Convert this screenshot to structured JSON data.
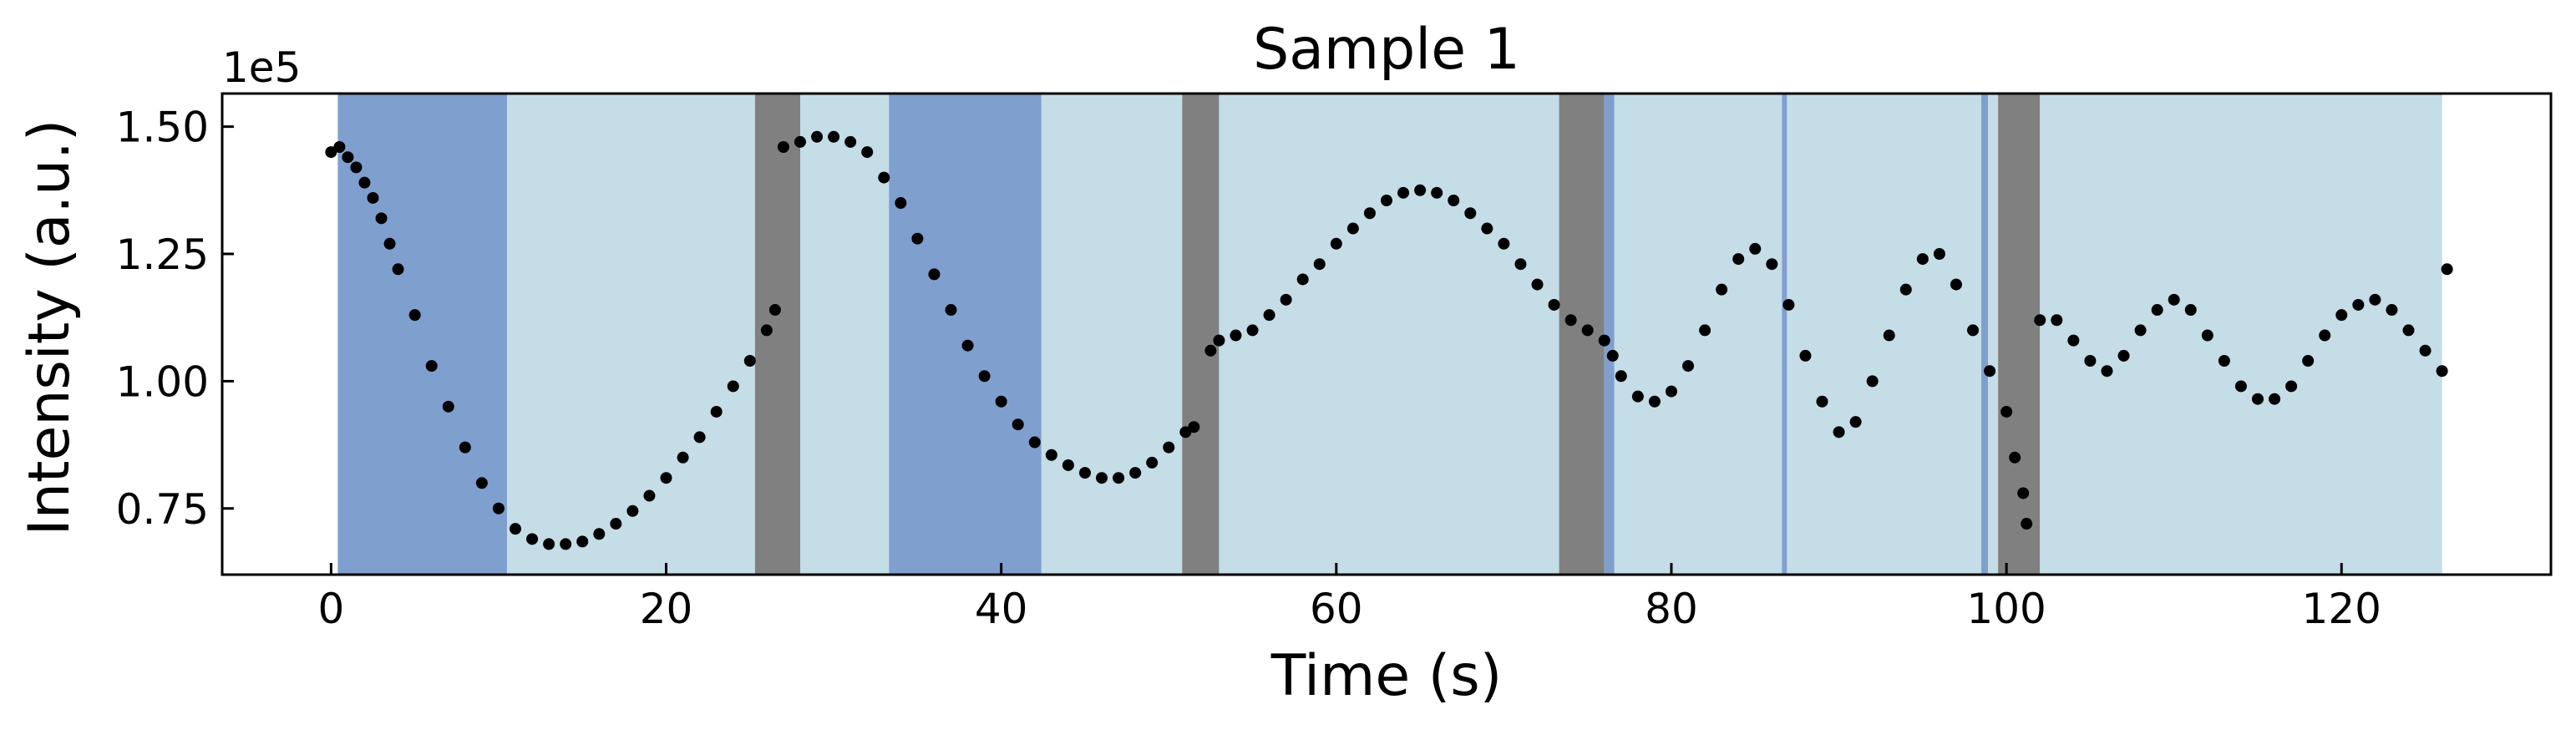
{
  "chart_data": {
    "type": "scatter",
    "title": "Sample 1",
    "xlabel": "Time (s)",
    "ylabel": "Intensity (a.u.)",
    "y_offset_label": "1e5",
    "xlim": [
      -6.5,
      132.5
    ],
    "ylim": [
      0.62,
      1.565
    ],
    "xticks": [
      0,
      20,
      40,
      60,
      80,
      100,
      120
    ],
    "xtick_labels": [
      "0",
      "20",
      "40",
      "60",
      "80",
      "100",
      "120"
    ],
    "yticks": [
      0.75,
      1.0,
      1.25,
      1.5
    ],
    "ytick_labels": [
      "0.75",
      "1.00",
      "1.25",
      "1.50"
    ],
    "grid": false,
    "colors": {
      "dark_blue_band": "#7f9fcf",
      "light_blue_band": "#c4dde7",
      "gray_band": "#808080",
      "points": "#000000"
    },
    "bands": [
      {
        "x0": 0.4,
        "x1": 10.5,
        "kind": "dark_blue_band"
      },
      {
        "x0": 10.5,
        "x1": 25.3,
        "kind": "light_blue_band"
      },
      {
        "x0": 25.3,
        "x1": 28.0,
        "kind": "gray_band"
      },
      {
        "x0": 28.0,
        "x1": 33.3,
        "kind": "light_blue_band"
      },
      {
        "x0": 33.3,
        "x1": 42.4,
        "kind": "dark_blue_band"
      },
      {
        "x0": 42.4,
        "x1": 50.8,
        "kind": "light_blue_band"
      },
      {
        "x0": 50.8,
        "x1": 53.0,
        "kind": "gray_band"
      },
      {
        "x0": 53.0,
        "x1": 73.3,
        "kind": "light_blue_band"
      },
      {
        "x0": 73.3,
        "x1": 76.0,
        "kind": "gray_band"
      },
      {
        "x0": 76.0,
        "x1": 76.6,
        "kind": "dark_blue_band"
      },
      {
        "x0": 76.6,
        "x1": 86.6,
        "kind": "light_blue_band"
      },
      {
        "x0": 86.6,
        "x1": 86.9,
        "kind": "dark_blue_band"
      },
      {
        "x0": 86.9,
        "x1": 98.5,
        "kind": "light_blue_band"
      },
      {
        "x0": 98.5,
        "x1": 98.9,
        "kind": "dark_blue_band"
      },
      {
        "x0": 98.9,
        "x1": 99.5,
        "kind": "light_blue_band"
      },
      {
        "x0": 99.5,
        "x1": 102.0,
        "kind": "gray_band"
      },
      {
        "x0": 102.0,
        "x1": 126.0,
        "kind": "light_blue_band"
      }
    ],
    "series": [
      {
        "points": [
          [
            0,
            1.45
          ],
          [
            0.5,
            1.46
          ],
          [
            1,
            1.44
          ],
          [
            1.5,
            1.42
          ],
          [
            2,
            1.39
          ],
          [
            2.5,
            1.36
          ],
          [
            3,
            1.32
          ],
          [
            3.5,
            1.27
          ],
          [
            4,
            1.22
          ],
          [
            5,
            1.13
          ],
          [
            6,
            1.03
          ],
          [
            7,
            0.95
          ],
          [
            8,
            0.87
          ],
          [
            9,
            0.8
          ],
          [
            10,
            0.75
          ],
          [
            11,
            0.71
          ],
          [
            12,
            0.69
          ],
          [
            13,
            0.68
          ],
          [
            14,
            0.68
          ],
          [
            15,
            0.685
          ],
          [
            16,
            0.7
          ],
          [
            17,
            0.72
          ],
          [
            18,
            0.745
          ],
          [
            19,
            0.775
          ],
          [
            20,
            0.81
          ],
          [
            21,
            0.85
          ],
          [
            22,
            0.89
          ],
          [
            23,
            0.94
          ],
          [
            24,
            0.99
          ],
          [
            25,
            1.04
          ],
          [
            26,
            1.1
          ],
          [
            26.5,
            1.14
          ],
          [
            27,
            1.46
          ],
          [
            28,
            1.47
          ],
          [
            29,
            1.48
          ],
          [
            30,
            1.48
          ],
          [
            31,
            1.47
          ],
          [
            32,
            1.45
          ],
          [
            33,
            1.4
          ],
          [
            34,
            1.35
          ],
          [
            35,
            1.28
          ],
          [
            36,
            1.21
          ],
          [
            37,
            1.14
          ],
          [
            38,
            1.07
          ],
          [
            39,
            1.01
          ],
          [
            40,
            0.96
          ],
          [
            41,
            0.915
          ],
          [
            42,
            0.88
          ],
          [
            43,
            0.855
          ],
          [
            44,
            0.835
          ],
          [
            45,
            0.82
          ],
          [
            46,
            0.81
          ],
          [
            47,
            0.81
          ],
          [
            48,
            0.82
          ],
          [
            49,
            0.84
          ],
          [
            50,
            0.87
          ],
          [
            51,
            0.9
          ],
          [
            51.5,
            0.91
          ],
          [
            52.5,
            1.06
          ],
          [
            53,
            1.08
          ],
          [
            54,
            1.09
          ],
          [
            55,
            1.1
          ],
          [
            56,
            1.13
          ],
          [
            57,
            1.16
          ],
          [
            58,
            1.2
          ],
          [
            59,
            1.23
          ],
          [
            60,
            1.27
          ],
          [
            61,
            1.3
          ],
          [
            62,
            1.33
          ],
          [
            63,
            1.355
          ],
          [
            64,
            1.37
          ],
          [
            65,
            1.375
          ],
          [
            66,
            1.37
          ],
          [
            67,
            1.355
          ],
          [
            68,
            1.33
          ],
          [
            69,
            1.3
          ],
          [
            70,
            1.27
          ],
          [
            71,
            1.23
          ],
          [
            72,
            1.19
          ],
          [
            73,
            1.15
          ],
          [
            74,
            1.12
          ],
          [
            75,
            1.1
          ],
          [
            76,
            1.08
          ],
          [
            76.5,
            1.05
          ],
          [
            77,
            1.01
          ],
          [
            78,
            0.97
          ],
          [
            79,
            0.96
          ],
          [
            80,
            0.98
          ],
          [
            81,
            1.03
          ],
          [
            82,
            1.1
          ],
          [
            83,
            1.18
          ],
          [
            84,
            1.24
          ],
          [
            85,
            1.26
          ],
          [
            86,
            1.23
          ],
          [
            87,
            1.15
          ],
          [
            88,
            1.05
          ],
          [
            89,
            0.96
          ],
          [
            90,
            0.9
          ],
          [
            91,
            0.92
          ],
          [
            92,
            1.0
          ],
          [
            93,
            1.09
          ],
          [
            94,
            1.18
          ],
          [
            95,
            1.24
          ],
          [
            96,
            1.25
          ],
          [
            97,
            1.19
          ],
          [
            98,
            1.1
          ],
          [
            99,
            1.02
          ],
          [
            100,
            0.94
          ],
          [
            100.5,
            0.85
          ],
          [
            101,
            0.78
          ],
          [
            101.2,
            0.72
          ],
          [
            102,
            1.12
          ],
          [
            103,
            1.12
          ],
          [
            104,
            1.08
          ],
          [
            105,
            1.04
          ],
          [
            106,
            1.02
          ],
          [
            107,
            1.05
          ],
          [
            108,
            1.1
          ],
          [
            109,
            1.14
          ],
          [
            110,
            1.16
          ],
          [
            111,
            1.14
          ],
          [
            112,
            1.09
          ],
          [
            113,
            1.04
          ],
          [
            114,
            0.99
          ],
          [
            115,
            0.965
          ],
          [
            116,
            0.965
          ],
          [
            117,
            0.99
          ],
          [
            118,
            1.04
          ],
          [
            119,
            1.09
          ],
          [
            120,
            1.13
          ],
          [
            121,
            1.15
          ],
          [
            122,
            1.16
          ],
          [
            123,
            1.14
          ],
          [
            124,
            1.1
          ],
          [
            125,
            1.06
          ],
          [
            126,
            1.02
          ],
          [
            126.3,
            1.22
          ]
        ]
      }
    ]
  }
}
